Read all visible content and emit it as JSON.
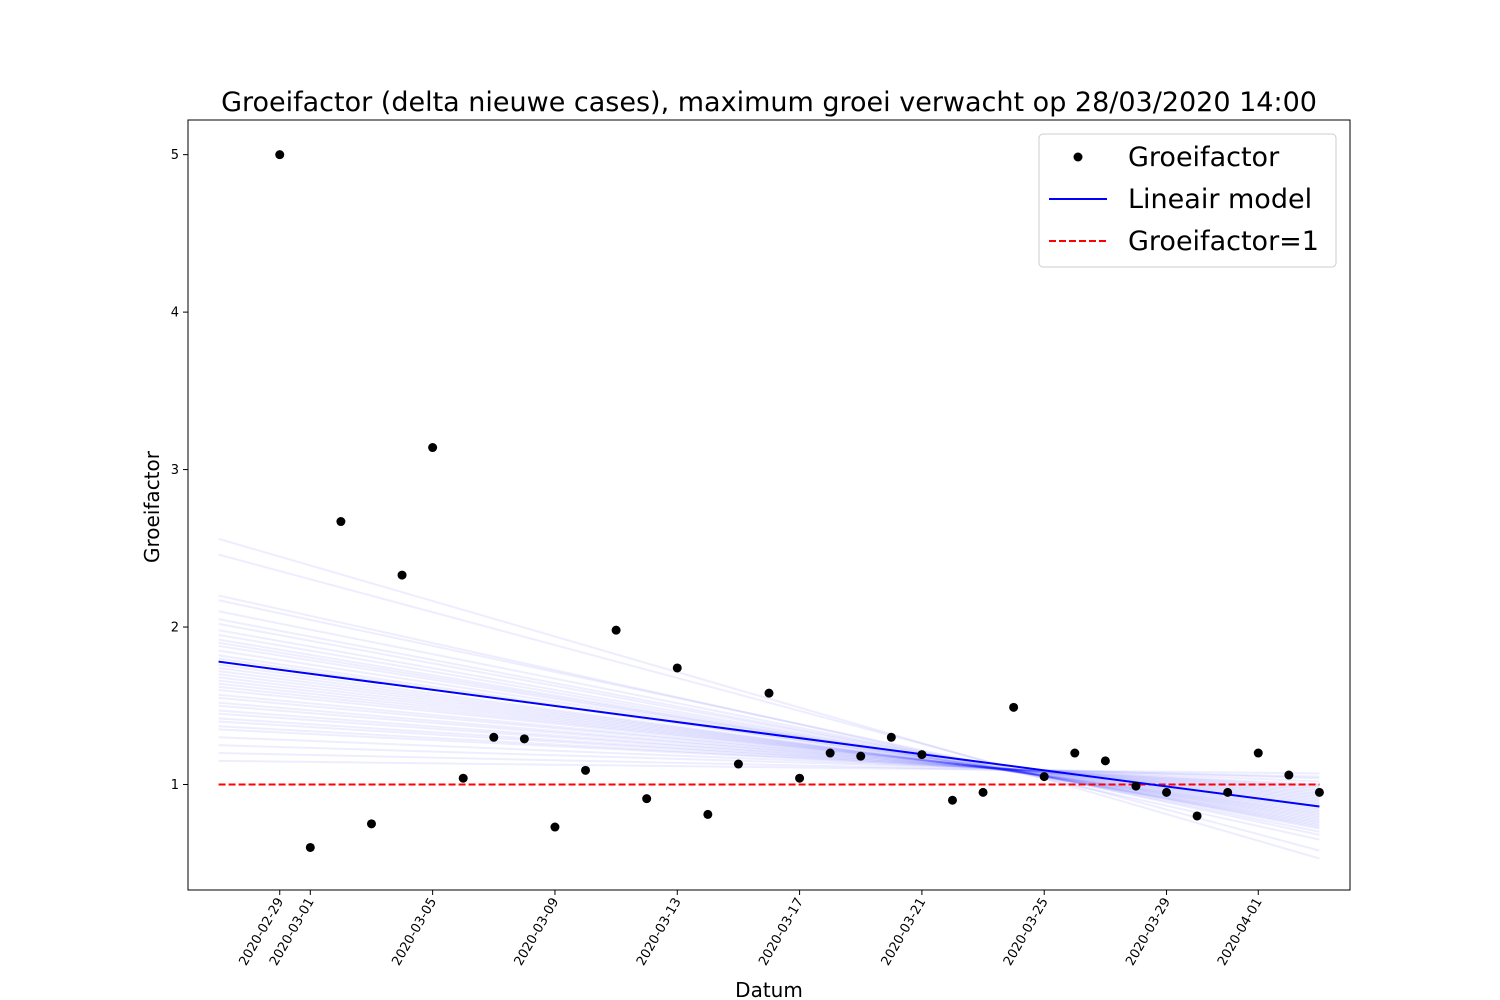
{
  "chart_data": {
    "type": "scatter",
    "title": "Groeifactor (delta nieuwe cases), maximum groei verwacht op 28/03/2020 14:00",
    "xlabel": "Datum",
    "ylabel": "Groeifactor",
    "x_range": [
      "2020-02-27",
      "2020-04-03"
    ],
    "xlim": [
      "2020-02-26",
      "2020-04-04"
    ],
    "ylim": [
      0.33,
      5.22
    ],
    "x_ticks": [
      "2020-02-29",
      "2020-03-01",
      "2020-03-05",
      "2020-03-09",
      "2020-03-13",
      "2020-03-17",
      "2020-03-21",
      "2020-03-25",
      "2020-03-29",
      "2020-04-01"
    ],
    "y_ticks": [
      1,
      2,
      3,
      4,
      5
    ],
    "grid": false,
    "legend_position": "top-right",
    "legend": [
      "Groeifactor",
      "Lineair model",
      "Groeifactor=1"
    ],
    "colors": {
      "points": "#000000",
      "model": "#0000ff",
      "samples": "#0000ff",
      "reference": "#ff0000"
    },
    "points": {
      "name": "Groeifactor",
      "x": [
        "2020-02-29",
        "2020-03-01",
        "2020-03-02",
        "2020-03-03",
        "2020-03-04",
        "2020-03-05",
        "2020-03-06",
        "2020-03-07",
        "2020-03-08",
        "2020-03-09",
        "2020-03-10",
        "2020-03-11",
        "2020-03-12",
        "2020-03-13",
        "2020-03-14",
        "2020-03-15",
        "2020-03-16",
        "2020-03-17",
        "2020-03-18",
        "2020-03-19",
        "2020-03-20",
        "2020-03-21",
        "2020-03-22",
        "2020-03-23",
        "2020-03-24",
        "2020-03-25",
        "2020-03-26",
        "2020-03-27",
        "2020-03-28",
        "2020-03-29",
        "2020-03-30",
        "2020-03-31",
        "2020-04-01",
        "2020-04-02",
        "2020-04-03"
      ],
      "y": [
        5.0,
        0.6,
        2.67,
        0.75,
        2.33,
        3.14,
        1.04,
        1.3,
        1.29,
        0.73,
        1.09,
        1.98,
        0.91,
        1.74,
        0.81,
        1.13,
        1.58,
        1.04,
        1.2,
        1.18,
        1.3,
        1.19,
        0.9,
        0.95,
        1.49,
        1.05,
        1.2,
        1.15,
        0.99,
        0.95,
        0.8,
        0.95,
        1.2,
        1.06,
        0.95
      ]
    },
    "model": {
      "name": "Lineair model",
      "x": [
        "2020-02-27",
        "2020-04-03"
      ],
      "y": [
        1.78,
        0.86
      ]
    },
    "reference": {
      "name": "Groeifactor=1",
      "x": [
        "2020-02-27",
        "2020-04-03"
      ],
      "y": [
        1.0,
        1.0
      ]
    },
    "sample_lines": [
      [
        2.56,
        0.53
      ],
      [
        2.46,
        0.58
      ],
      [
        2.2,
        0.65
      ],
      [
        2.17,
        0.68
      ],
      [
        2.1,
        0.7
      ],
      [
        2.05,
        0.72
      ],
      [
        2.02,
        0.73
      ],
      [
        1.98,
        0.74
      ],
      [
        1.95,
        0.75
      ],
      [
        1.92,
        0.76
      ],
      [
        1.9,
        0.77
      ],
      [
        1.88,
        0.78
      ],
      [
        1.85,
        0.79
      ],
      [
        1.82,
        0.8
      ],
      [
        1.8,
        0.81
      ],
      [
        1.76,
        0.82
      ],
      [
        1.74,
        0.83
      ],
      [
        1.72,
        0.84
      ],
      [
        1.7,
        0.85
      ],
      [
        1.68,
        0.86
      ],
      [
        1.66,
        0.87
      ],
      [
        1.64,
        0.88
      ],
      [
        1.62,
        0.89
      ],
      [
        1.6,
        0.9
      ],
      [
        1.57,
        0.91
      ],
      [
        1.55,
        0.92
      ],
      [
        1.52,
        0.93
      ],
      [
        1.5,
        0.94
      ],
      [
        1.47,
        0.95
      ],
      [
        1.45,
        0.96
      ],
      [
        1.42,
        0.97
      ],
      [
        1.4,
        0.98
      ],
      [
        1.37,
        0.99
      ],
      [
        1.35,
        1.0
      ],
      [
        1.3,
        1.02
      ],
      [
        1.25,
        1.04
      ],
      [
        1.2,
        1.05
      ],
      [
        1.15,
        1.07
      ]
    ]
  }
}
